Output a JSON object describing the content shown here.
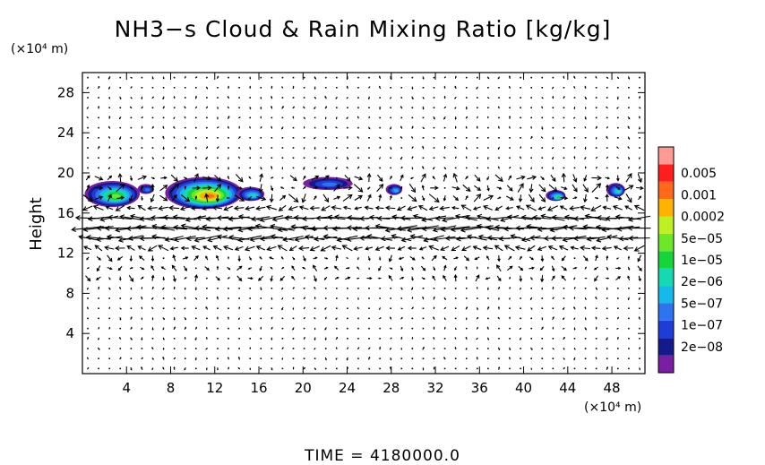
{
  "chart_data": {
    "type": "heatmap",
    "title": "NH3−s Cloud & Rain Mixing Ratio [kg/kg]",
    "ylabel": "Height",
    "x_unit": "(×10⁴ m)",
    "y_unit": "(×10⁴ m)",
    "xlim": [
      0,
      51
    ],
    "ylim": [
      0,
      30
    ],
    "x_ticks": [
      4,
      8,
      12,
      16,
      20,
      24,
      28,
      32,
      36,
      40,
      44,
      48
    ],
    "y_ticks": [
      4,
      8,
      12,
      16,
      20,
      24,
      28
    ],
    "footer": "TIME  =  4180000.0",
    "colorbar": {
      "colors": [
        "#7a1fa0",
        "#141a8c",
        "#1f3cd6",
        "#2d74ee",
        "#17b8ea",
        "#16d9b4",
        "#16d43a",
        "#6ee62a",
        "#bff025",
        "#ffb300",
        "#ff6a1a",
        "#ff1f1f",
        "#ff9a94"
      ],
      "labels": [
        "2e−08",
        "1e−07",
        "5e−07",
        "2e−06",
        "1e−05",
        "5e−05",
        "0.0002",
        "0.001",
        "0.005"
      ]
    },
    "cloud_regions": [
      {
        "x": [
          0.2,
          5.2
        ],
        "y": [
          16.6,
          19.2
        ],
        "peak_level": 7
      },
      {
        "x": [
          5.0,
          6.5
        ],
        "y": [
          17.9,
          18.9
        ],
        "peak_level": 3
      },
      {
        "x": [
          7.5,
          14.5
        ],
        "y": [
          16.4,
          19.6
        ],
        "peak_level": 10
      },
      {
        "x": [
          14.0,
          16.5
        ],
        "y": [
          17.2,
          18.6
        ],
        "peak_level": 5
      },
      {
        "x": [
          20.0,
          24.5
        ],
        "y": [
          18.3,
          19.6
        ],
        "peak_level": 3
      },
      {
        "x": [
          27.5,
          29.0
        ],
        "y": [
          17.8,
          18.9
        ],
        "peak_level": 4
      },
      {
        "x": [
          42.0,
          43.8
        ],
        "y": [
          17.2,
          18.3
        ],
        "peak_level": 6
      },
      {
        "x": [
          47.5,
          49.2
        ],
        "y": [
          17.6,
          19.0
        ],
        "peak_level": 5
      }
    ],
    "wind_field": {
      "jet_layer": {
        "y": [
          12,
          17
        ],
        "u_max": -3.0
      },
      "upper_layer": {
        "y": [
          17,
          20
        ],
        "u_max": 1.2
      },
      "quiet_layers": [
        [
          0,
          11
        ],
        [
          20,
          30
        ]
      ]
    }
  }
}
